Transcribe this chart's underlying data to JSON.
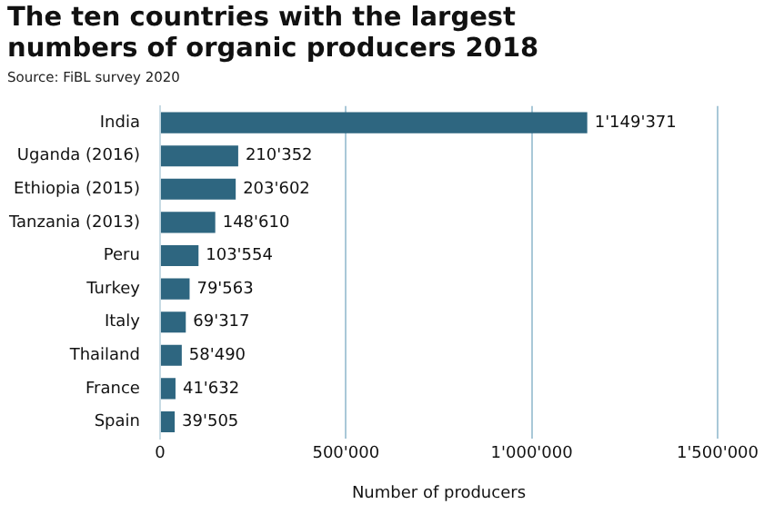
{
  "chart_data": {
    "type": "bar",
    "orientation": "horizontal",
    "title": "The ten countries with the largest numbers of organic producers 2018",
    "annotations": [
      "Source: FiBL survey 2020"
    ],
    "xlabel": "Number of producers",
    "categories": [
      "India",
      "Uganda (2016)",
      "Ethiopia (2015)",
      "Tanzania (2013)",
      "Peru",
      "Turkey",
      "Italy",
      "Thailand",
      "France",
      "Spain"
    ],
    "values": [
      1149371,
      210352,
      203602,
      148610,
      103554,
      79563,
      69317,
      58490,
      41632,
      39505
    ],
    "value_labels": [
      "1'149'371",
      "210'352",
      "203'602",
      "148'610",
      "103'554",
      "79'563",
      "69'317",
      "58'490",
      "41'632",
      "39'505"
    ],
    "color": "#2e6680",
    "xlim": [
      0,
      1500000
    ],
    "xticks": [
      0,
      {
        "value": 500000,
        "label": "500'000"
      },
      {
        "value": 1000000,
        "label": "1'000'000"
      },
      {
        "value": 1500000,
        "label": "1'500'000"
      }
    ],
    "grid": "x"
  }
}
